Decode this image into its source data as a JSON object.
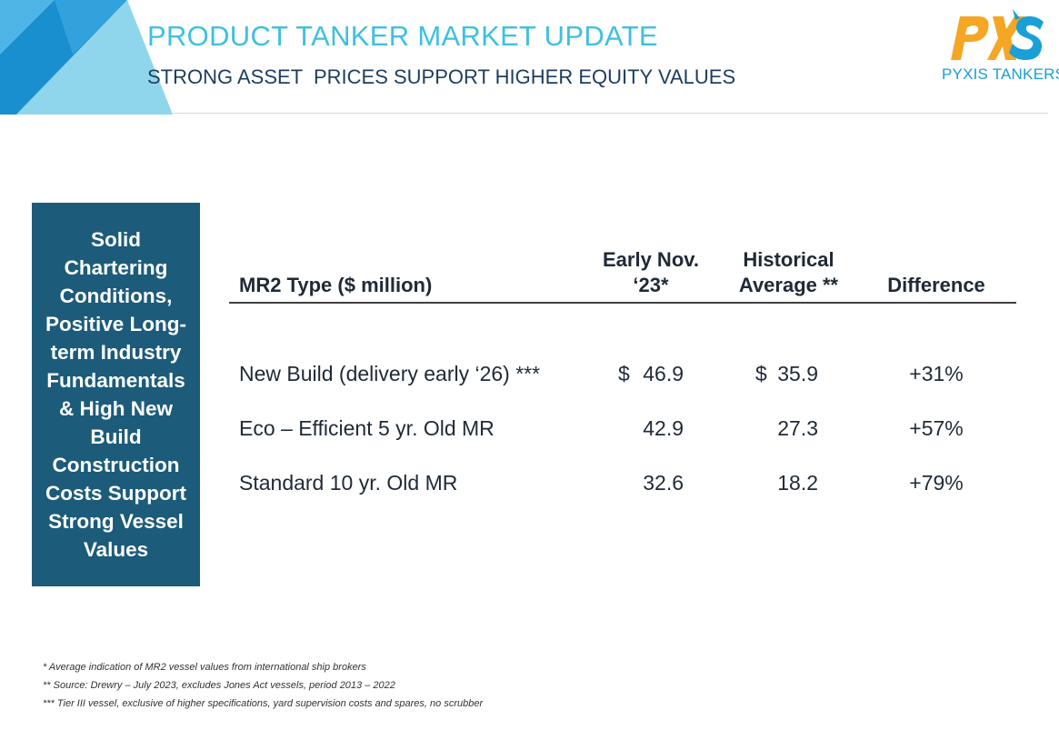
{
  "header": {
    "title": "PRODUCT TANKER MARKET UPDATE",
    "subtitle": "STRONG ASSET  PRICES SUPPORT HIGHER EQUITY VALUES"
  },
  "logo": {
    "mark_text": "PXS",
    "company": "PYXIS TANKERS"
  },
  "side_panel": {
    "text": "Solid Chartering Conditions, Positive Long-term Industry Fundamentals & High New Build Construction Costs Support Strong Vessel Values"
  },
  "table": {
    "headers": {
      "type": "MR2 Type ($ million)",
      "early_line1": "Early Nov.",
      "early_line2": "‘23*",
      "hist_line1": "Historical",
      "hist_line2": "Average **",
      "diff": "Difference"
    },
    "rows": [
      {
        "name": "New Build (delivery early ‘26) ***",
        "cur1": "$",
        "early": "46.9",
        "cur2": "$",
        "hist": "35.9",
        "diff": "+31%"
      },
      {
        "name": "Eco – Efficient 5 yr. Old MR",
        "cur1": "",
        "early": "42.9",
        "cur2": "",
        "hist": "27.3",
        "diff": "+57%"
      },
      {
        "name": "Standard 10 yr. Old MR",
        "cur1": "",
        "early": "32.6",
        "cur2": "",
        "hist": "18.2",
        "diff": "+79%"
      }
    ]
  },
  "footnotes": [
    "* Average indication of MR2 vessel values from international ship brokers",
    "** Source: Drewry – July 2023, excludes Jones Act vessels, period 2013 – 2022",
    "*** Tier III vessel, exclusive of higher specifications, yard supervision costs and spares, no scrubber"
  ],
  "colors": {
    "title": "#3fc0df",
    "subtitle": "#1e3d5e",
    "side_panel": "#1c5b7a",
    "logo_orange": "#f5a623",
    "logo_blue": "#1a9fd6"
  }
}
